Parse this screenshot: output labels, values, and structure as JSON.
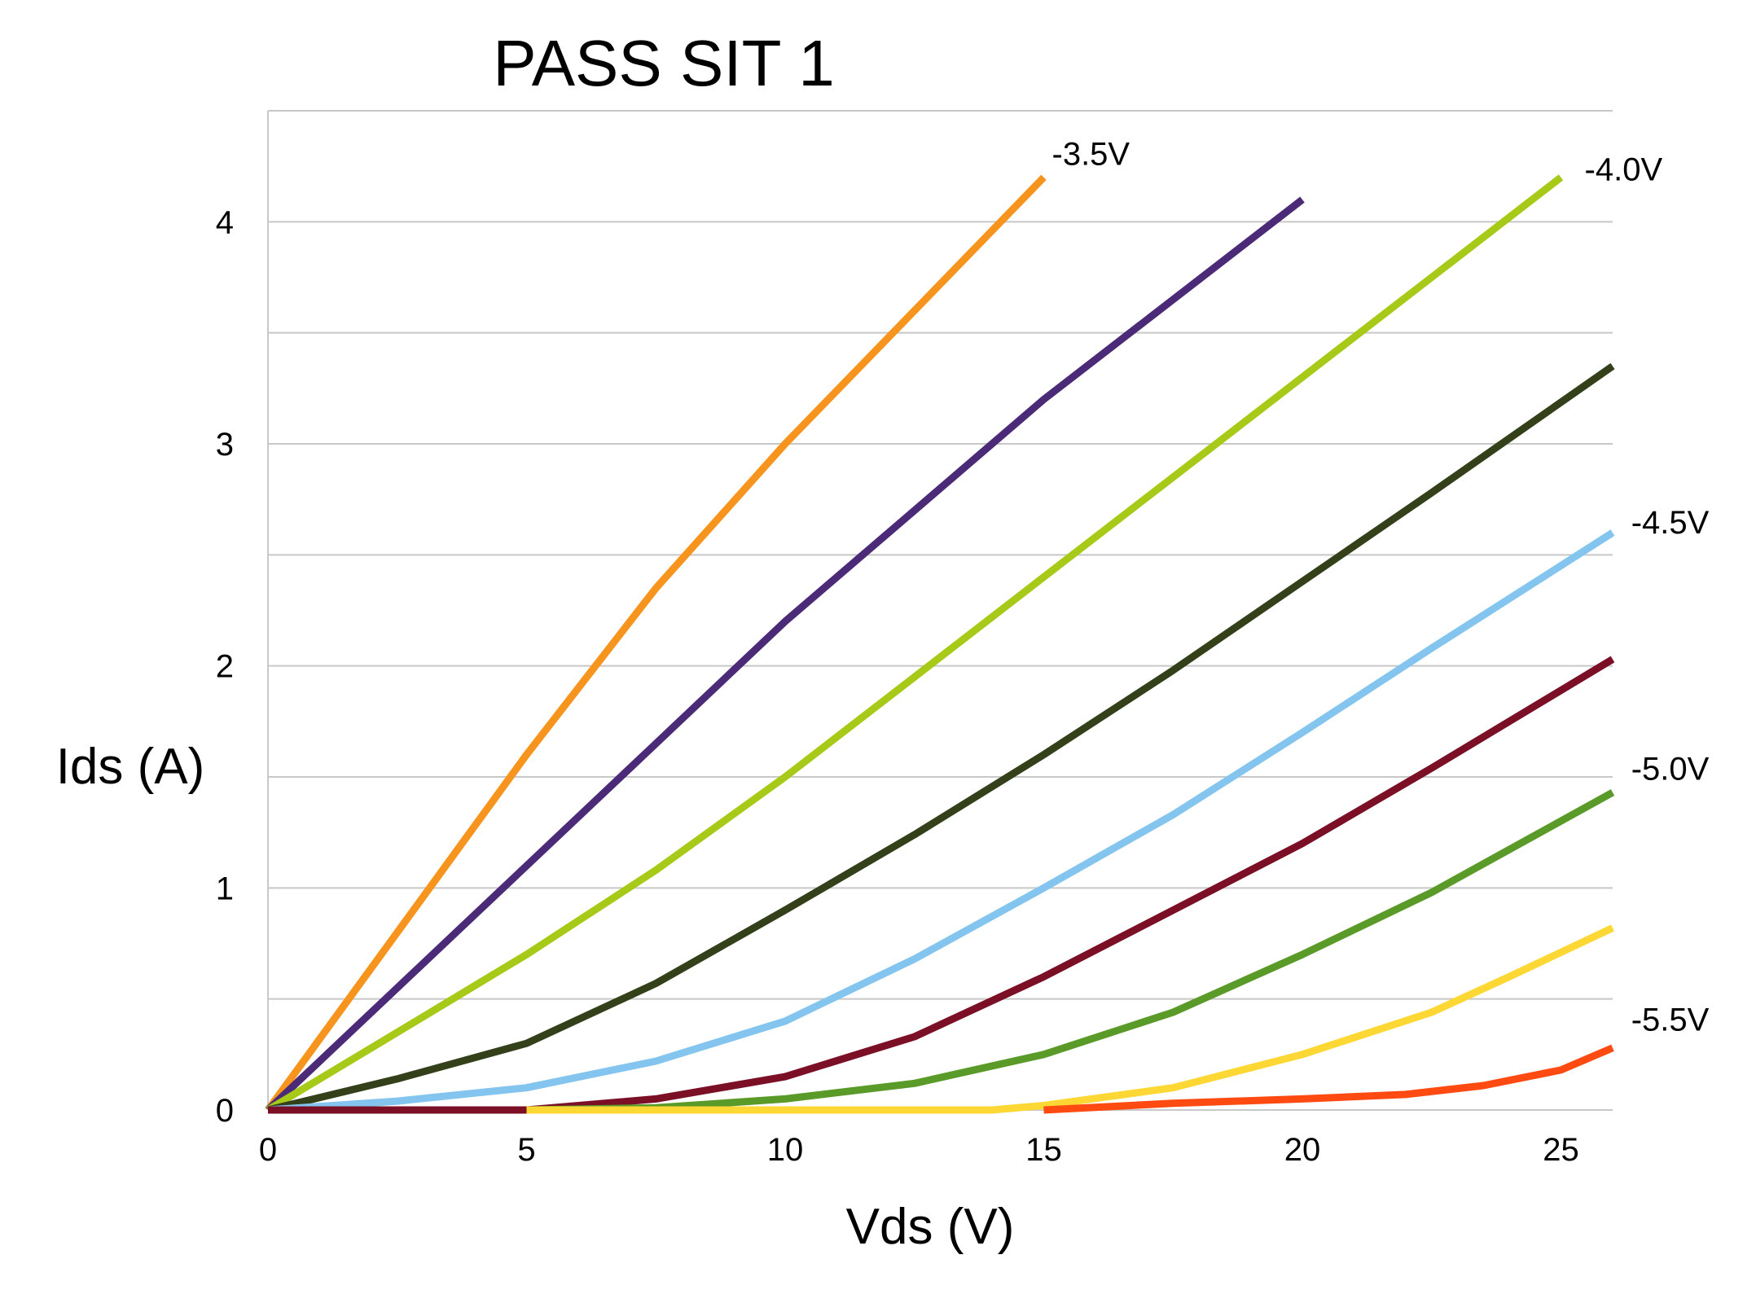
{
  "chart_data": {
    "type": "line",
    "title": "PASS SIT 1",
    "xlabel": "Vds (V)",
    "ylabel": "Ids (A)",
    "xlim": [
      0,
      26
    ],
    "ylim": [
      0,
      4.5
    ],
    "x_ticks": [
      "0",
      "5",
      "10",
      "15",
      "20",
      "25"
    ],
    "y_ticks": [
      "0",
      "1",
      "2",
      "3",
      "4"
    ],
    "grid": true,
    "series": [
      {
        "color": "#f7941d",
        "points": [
          [
            0,
            0
          ],
          [
            2.5,
            0.8
          ],
          [
            5,
            1.6
          ],
          [
            7.5,
            2.35
          ],
          [
            10,
            3.0
          ],
          [
            12.5,
            3.6
          ],
          [
            15,
            4.2
          ]
        ]
      },
      {
        "color": "#4b2a78",
        "points": [
          [
            0,
            0
          ],
          [
            2.5,
            0.55
          ],
          [
            5,
            1.1
          ],
          [
            7.5,
            1.65
          ],
          [
            10,
            2.2
          ],
          [
            12.5,
            2.7
          ],
          [
            15,
            3.2
          ],
          [
            17.5,
            3.65
          ],
          [
            20,
            4.1
          ]
        ]
      },
      {
        "color": "#a7c918",
        "points": [
          [
            0,
            0
          ],
          [
            2.5,
            0.35
          ],
          [
            5,
            0.7
          ],
          [
            7.5,
            1.08
          ],
          [
            10,
            1.5
          ],
          [
            12.5,
            1.95
          ],
          [
            15,
            2.4
          ],
          [
            17.5,
            2.85
          ],
          [
            20,
            3.3
          ],
          [
            22.5,
            3.75
          ],
          [
            25,
            4.2
          ]
        ]
      },
      {
        "color": "#33401a",
        "points": [
          [
            0,
            0
          ],
          [
            2.5,
            0.14
          ],
          [
            5,
            0.3
          ],
          [
            7.5,
            0.57
          ],
          [
            10,
            0.9
          ],
          [
            12.5,
            1.24
          ],
          [
            15,
            1.6
          ],
          [
            17.5,
            1.98
          ],
          [
            20,
            2.38
          ],
          [
            22.5,
            2.78
          ],
          [
            26,
            3.35
          ]
        ]
      },
      {
        "color": "#84c5f0",
        "points": [
          [
            0,
            0
          ],
          [
            2.5,
            0.04
          ],
          [
            5,
            0.1
          ],
          [
            7.5,
            0.22
          ],
          [
            10,
            0.4
          ],
          [
            12.5,
            0.68
          ],
          [
            15,
            1.0
          ],
          [
            17.5,
            1.33
          ],
          [
            20,
            1.7
          ],
          [
            22.5,
            2.08
          ],
          [
            26,
            2.6
          ]
        ]
      },
      {
        "color": "#7a0f26",
        "points": [
          [
            0,
            0
          ],
          [
            5,
            0
          ],
          [
            7.5,
            0.05
          ],
          [
            10,
            0.15
          ],
          [
            12.5,
            0.33
          ],
          [
            15,
            0.6
          ],
          [
            17.5,
            0.9
          ],
          [
            20,
            1.2
          ],
          [
            22.5,
            1.54
          ],
          [
            26,
            2.03
          ]
        ]
      },
      {
        "color": "#5a9a28",
        "points": [
          [
            5,
            0
          ],
          [
            7.5,
            0.01
          ],
          [
            10,
            0.05
          ],
          [
            12.5,
            0.12
          ],
          [
            15,
            0.25
          ],
          [
            17.5,
            0.44
          ],
          [
            20,
            0.7
          ],
          [
            22.5,
            0.98
          ],
          [
            26,
            1.43
          ]
        ]
      },
      {
        "color": "#fdd835",
        "points": [
          [
            5,
            0
          ],
          [
            10,
            0
          ],
          [
            14,
            0
          ],
          [
            15,
            0.02
          ],
          [
            17.5,
            0.1
          ],
          [
            20,
            0.25
          ],
          [
            22.5,
            0.44
          ],
          [
            24,
            0.6
          ],
          [
            26,
            0.82
          ]
        ]
      },
      {
        "color": "#ff4a12",
        "points": [
          [
            15,
            0
          ],
          [
            17.5,
            0.03
          ],
          [
            20,
            0.05
          ],
          [
            22,
            0.07
          ],
          [
            23.5,
            0.11
          ],
          [
            25,
            0.18
          ],
          [
            26,
            0.28
          ]
        ]
      }
    ],
    "annotations": [
      {
        "text": "-3.5V",
        "x": 15.0,
        "y": 4.22
      },
      {
        "text": "-4.0V",
        "x": 25.3,
        "y": 4.15
      },
      {
        "text": "-4.5V",
        "x": 26.2,
        "y": 2.56
      },
      {
        "text": "-5.0V",
        "x": 26.2,
        "y": 1.45
      },
      {
        "text": "-5.5V",
        "x": 26.2,
        "y": 0.32
      }
    ]
  }
}
